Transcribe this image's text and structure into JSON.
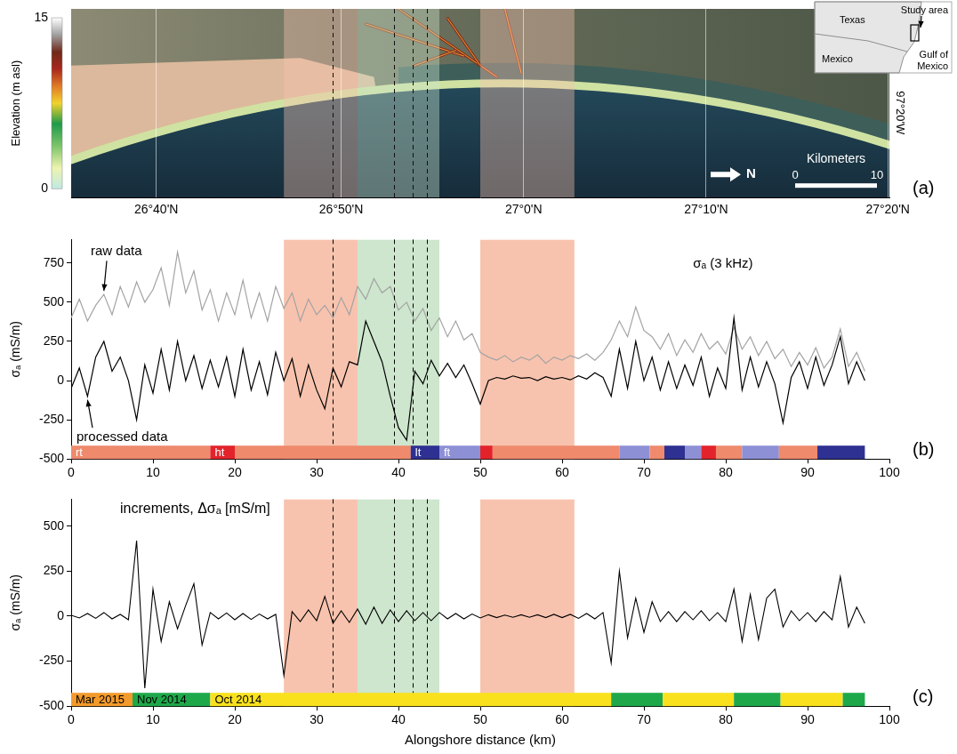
{
  "highlight_bands": [
    {
      "start": 26,
      "end": 35,
      "color": "#f8c3ae"
    },
    {
      "start": 35,
      "end": 45,
      "color": "#cde6cd"
    },
    {
      "start": 50,
      "end": 61.5,
      "color": "#f8c3ae"
    }
  ],
  "dashed_lines": [
    32,
    39.5,
    41.7,
    43.5
  ],
  "chart_data": [
    {
      "type": "map",
      "panel_label": "(a)",
      "xlim": [
        0,
        100
      ],
      "xticks": [
        {
          "value": 10.4,
          "label": "26°40'N"
        },
        {
          "value": 33,
          "label": "26°50'N"
        },
        {
          "value": 55.3,
          "label": "27°0'N"
        },
        {
          "value": 77.6,
          "label": "27°10'N"
        },
        {
          "value": 99.8,
          "label": "27°20'N"
        }
      ],
      "grid": true,
      "colorbar": {
        "label": "Elevation (m asl)",
        "range": [
          0,
          15
        ],
        "ticks": [
          0,
          15
        ]
      },
      "longitude_label": "97°20'W",
      "north_arrow": "N",
      "scale_bar": {
        "label": "Kilometers",
        "ticks": [
          0,
          10
        ]
      },
      "inset": {
        "labels": [
          "Texas",
          "Mexico",
          "Gulf of Mexico"
        ],
        "marker_label": "Study area"
      }
    },
    {
      "type": "line",
      "panel_label": "(b)",
      "y_label": "σₐ (mS/m)",
      "annotations": [
        "σₐ (3 kHz)"
      ],
      "x": [
        0,
        1,
        2,
        3,
        4,
        5,
        6,
        7,
        8,
        9,
        10,
        11,
        12,
        13,
        14,
        15,
        16,
        17,
        18,
        19,
        20,
        21,
        22,
        23,
        24,
        25,
        26,
        27,
        28,
        29,
        30,
        31,
        32,
        33,
        34,
        35,
        36,
        37,
        38,
        39,
        40,
        41,
        42,
        43,
        44,
        45,
        46,
        47,
        48,
        49,
        50,
        51,
        52,
        53,
        54,
        55,
        56,
        57,
        58,
        59,
        60,
        61,
        62,
        63,
        64,
        65,
        66,
        67,
        68,
        69,
        70,
        71,
        72,
        73,
        74,
        75,
        76,
        77,
        78,
        79,
        80,
        81,
        82,
        83,
        84,
        85,
        86,
        87,
        88,
        89,
        90,
        91,
        92,
        93,
        94,
        95,
        96,
        97
      ],
      "series": [
        {
          "name": "raw data",
          "color": "#a3a3a3",
          "values": [
            400,
            520,
            380,
            480,
            550,
            420,
            600,
            470,
            630,
            500,
            580,
            720,
            480,
            820,
            560,
            700,
            450,
            580,
            380,
            560,
            420,
            640,
            400,
            560,
            380,
            600,
            460,
            560,
            380,
            520,
            420,
            480,
            400,
            530,
            420,
            600,
            520,
            650,
            560,
            600,
            450,
            500,
            380,
            460,
            320,
            400,
            280,
            380,
            260,
            300,
            180,
            150,
            130,
            160,
            120,
            150,
            130,
            165,
            110,
            150,
            130,
            160,
            140,
            170,
            130,
            180,
            260,
            380,
            280,
            470,
            320,
            280,
            200,
            300,
            160,
            260,
            180,
            300,
            200,
            250,
            170,
            340,
            200,
            280,
            160,
            250,
            140,
            200,
            90,
            180,
            100,
            210,
            80,
            150,
            330,
            90,
            180,
            60
          ]
        },
        {
          "name": "processed data",
          "color": "#000000",
          "values": [
            -50,
            80,
            -100,
            150,
            250,
            60,
            150,
            0,
            -250,
            100,
            -80,
            200,
            -60,
            250,
            0,
            160,
            -50,
            130,
            -40,
            150,
            -100,
            200,
            -60,
            120,
            -90,
            180,
            0,
            140,
            -100,
            100,
            -60,
            -180,
            80,
            -40,
            120,
            100,
            380,
            250,
            120,
            -100,
            -300,
            -380,
            60,
            -20,
            130,
            30,
            110,
            20,
            100,
            -20,
            -150,
            0,
            20,
            10,
            30,
            15,
            20,
            0,
            25,
            10,
            20,
            5,
            30,
            10,
            50,
            20,
            -100,
            200,
            -50,
            250,
            0,
            150,
            -60,
            120,
            -50,
            100,
            -30,
            150,
            -100,
            80,
            -50,
            400,
            -60,
            150,
            -40,
            120,
            -20,
            -270,
            20,
            120,
            -50,
            150,
            -30,
            100,
            280,
            -20,
            120,
            0
          ]
        }
      ],
      "xlim": [
        0,
        100
      ],
      "xticks": [
        0,
        10,
        20,
        30,
        40,
        50,
        60,
        70,
        80,
        90,
        100
      ],
      "ylim": [
        -500,
        900
      ],
      "yticks": [
        -500,
        -250,
        0,
        250,
        500,
        750
      ],
      "grid": false,
      "class_strip": [
        {
          "start": 0,
          "end": 17,
          "color": "#ef8a6d",
          "label": "rt"
        },
        {
          "start": 17,
          "end": 20,
          "color": "#e3232b",
          "label": "ht"
        },
        {
          "start": 20,
          "end": 41.5,
          "color": "#ef8a6d"
        },
        {
          "start": 41.5,
          "end": 45,
          "color": "#2e3192",
          "label": "lt"
        },
        {
          "start": 45,
          "end": 50,
          "color": "#8e90d6",
          "label": "ft"
        },
        {
          "start": 50,
          "end": 51.5,
          "color": "#e3232b"
        },
        {
          "start": 51.5,
          "end": 67,
          "color": "#ef8a6d"
        },
        {
          "start": 67,
          "end": 70.7,
          "color": "#8e90d6"
        },
        {
          "start": 70.7,
          "end": 72.5,
          "color": "#ef8a6d"
        },
        {
          "start": 72.5,
          "end": 75,
          "color": "#2e3192"
        },
        {
          "start": 75,
          "end": 77,
          "color": "#8e90d6"
        },
        {
          "start": 77,
          "end": 78.8,
          "color": "#e3232b"
        },
        {
          "start": 78.8,
          "end": 82,
          "color": "#ef8a6d"
        },
        {
          "start": 82,
          "end": 86.5,
          "color": "#8e90d6"
        },
        {
          "start": 86.5,
          "end": 91.2,
          "color": "#ef8a6d"
        },
        {
          "start": 91.2,
          "end": 97,
          "color": "#2e3192"
        }
      ]
    },
    {
      "type": "line",
      "panel_label": "(c)",
      "title": "increments, Δσₐ [mS/m]",
      "x_label": "Alongshore distance (km)",
      "y_label": "σₐ (mS/m)",
      "x": [
        0,
        1,
        2,
        3,
        4,
        5,
        6,
        7,
        8,
        9,
        10,
        11,
        12,
        13,
        14,
        15,
        16,
        17,
        18,
        19,
        20,
        21,
        22,
        23,
        24,
        25,
        26,
        27,
        28,
        29,
        30,
        31,
        32,
        33,
        34,
        35,
        36,
        37,
        38,
        39,
        40,
        41,
        42,
        43,
        44,
        45,
        46,
        47,
        48,
        49,
        50,
        51,
        52,
        53,
        54,
        55,
        56,
        57,
        58,
        59,
        60,
        61,
        62,
        63,
        64,
        65,
        66,
        67,
        68,
        69,
        70,
        71,
        72,
        73,
        74,
        75,
        76,
        77,
        78,
        79,
        80,
        81,
        82,
        83,
        84,
        85,
        86,
        87,
        88,
        89,
        90,
        91,
        92,
        93,
        94,
        95,
        96,
        97
      ],
      "values": [
        5,
        -10,
        15,
        -12,
        20,
        -15,
        10,
        -20,
        420,
        -400,
        150,
        -140,
        80,
        -70,
        60,
        180,
        -160,
        20,
        -15,
        18,
        -20,
        15,
        -18,
        12,
        -15,
        10,
        -330,
        25,
        -30,
        35,
        -25,
        110,
        -40,
        30,
        -35,
        40,
        -45,
        50,
        -40,
        35,
        -30,
        30,
        -25,
        20,
        -25,
        20,
        -15,
        15,
        -15,
        12,
        -10,
        8,
        -8,
        6,
        -6,
        8,
        -6,
        8,
        -8,
        10,
        -8,
        10,
        -12,
        15,
        -15,
        20,
        -260,
        250,
        -120,
        100,
        -90,
        80,
        -30,
        25,
        -30,
        25,
        -20,
        30,
        -25,
        20,
        -30,
        150,
        -140,
        120,
        -130,
        100,
        150,
        -60,
        30,
        -25,
        20,
        -30,
        25,
        -20,
        220,
        -60,
        50,
        -40
      ],
      "color": "#000000",
      "xlim": [
        0,
        100
      ],
      "xticks": [
        0,
        10,
        20,
        30,
        40,
        50,
        60,
        70,
        80,
        90,
        100
      ],
      "ylim": [
        -500,
        650
      ],
      "yticks": [
        -500,
        -250,
        0,
        250,
        500
      ],
      "grid": false,
      "date_strip": [
        {
          "start": 0,
          "end": 7.5,
          "color": "#f39a2c",
          "label": "Mar 2015"
        },
        {
          "start": 7.5,
          "end": 17,
          "color": "#1fa84a",
          "label": "Nov 2014"
        },
        {
          "start": 17,
          "end": 66,
          "color": "#f9e11e",
          "label": "Oct 2014"
        },
        {
          "start": 66,
          "end": 72.3,
          "color": "#1fa84a"
        },
        {
          "start": 72.3,
          "end": 81,
          "color": "#f9e11e"
        },
        {
          "start": 81,
          "end": 86.7,
          "color": "#1fa84a"
        },
        {
          "start": 86.7,
          "end": 94.3,
          "color": "#f9e11e"
        },
        {
          "start": 94.3,
          "end": 97,
          "color": "#1fa84a"
        }
      ]
    }
  ]
}
